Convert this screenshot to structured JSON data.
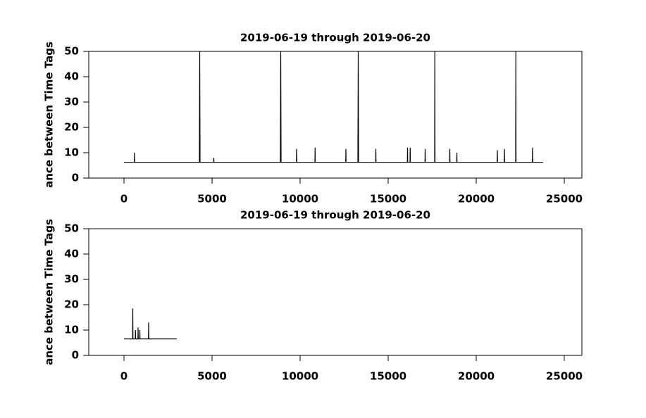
{
  "chart_data": [
    {
      "type": "line",
      "title": "2019-06-19 through 2019-06-20",
      "ylabel": "ance between Time Tags",
      "color": "#000000",
      "x": [
        0,
        590,
        600,
        610,
        4280,
        4300,
        4320,
        5090,
        5100,
        5110,
        8880,
        8900,
        8920,
        9790,
        9800,
        9810,
        10840,
        10850,
        10860,
        12590,
        12600,
        12610,
        13280,
        13300,
        13320,
        14290,
        14300,
        14310,
        16090,
        16100,
        16110,
        16240,
        16250,
        16260,
        17090,
        17100,
        17110,
        17640,
        17650,
        17660,
        18490,
        18500,
        18510,
        18890,
        18900,
        18910,
        21190,
        21200,
        21210,
        21590,
        21600,
        21610,
        22240,
        22250,
        22260,
        23190,
        23200,
        23210,
        23800
      ],
      "values": [
        6.2,
        6.2,
        10,
        6.2,
        6.2,
        50,
        6.2,
        6.2,
        8,
        6.2,
        6.2,
        50,
        6.2,
        6.2,
        11.5,
        6.2,
        6.2,
        12,
        6.2,
        6.2,
        11.5,
        6.2,
        6.2,
        50,
        6.2,
        6.2,
        11.5,
        6.2,
        6.2,
        12,
        6.2,
        6.2,
        12,
        6.2,
        6.2,
        11.5,
        6.2,
        6.2,
        50,
        6.2,
        6.2,
        11.5,
        6.2,
        6.2,
        10,
        6.2,
        6.2,
        11,
        6.2,
        6.2,
        11.5,
        6.2,
        6.2,
        50,
        6.2,
        6.2,
        12,
        6.2,
        6.2
      ],
      "xlim": [
        -2000,
        26000
      ],
      "ylim": [
        0,
        50
      ],
      "xticks": [
        0,
        5000,
        10000,
        15000,
        20000,
        25000
      ],
      "yticks": [
        0,
        10,
        20,
        30,
        40,
        50
      ]
    },
    {
      "type": "line",
      "title": "2019-06-19 through 2019-06-20",
      "ylabel": "ance between Time Tags",
      "color": "#000000",
      "x": [
        0,
        490,
        500,
        510,
        640,
        650,
        660,
        790,
        800,
        810,
        890,
        900,
        910,
        1390,
        1400,
        1410,
        3000
      ],
      "values": [
        6.5,
        6.5,
        18.5,
        6.5,
        6.5,
        10,
        6.5,
        6.5,
        11,
        6.5,
        6.5,
        10,
        6.5,
        6.5,
        13,
        6.5,
        6.5
      ],
      "xlim": [
        -2000,
        26000
      ],
      "ylim": [
        0,
        50
      ],
      "xticks": [
        0,
        5000,
        10000,
        15000,
        20000,
        25000
      ],
      "yticks": [
        0,
        10,
        20,
        30,
        40,
        50
      ]
    }
  ]
}
